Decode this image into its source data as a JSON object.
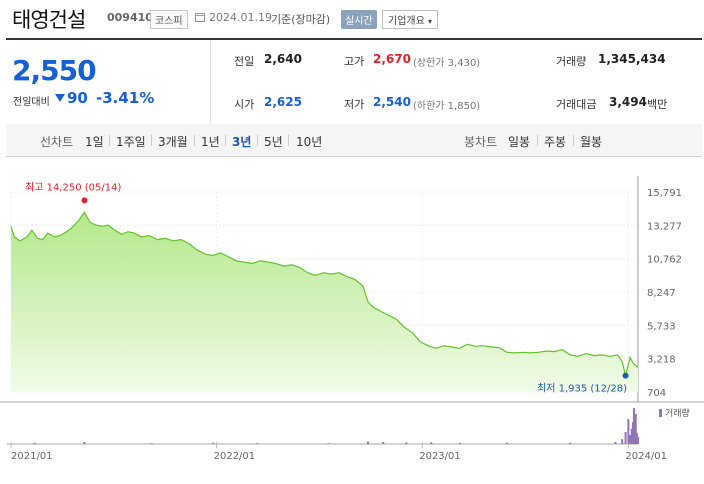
{
  "header": {
    "stock_name": "태영건설",
    "stock_code": "009410",
    "market": "코스피",
    "date": "2024.01.19",
    "basis": "기준(장마감)",
    "realtime_badge": "실시간",
    "company_info_button": "기업개요"
  },
  "quote": {
    "price": "2,550",
    "change_label": "전일대비",
    "change_value": "90",
    "change_rate": "-3.41%",
    "direction": "down",
    "colors": {
      "up": "#e0212b",
      "down": "#1560d6"
    },
    "stats": [
      {
        "label": "전일",
        "value": "2,640",
        "tone": "neutral"
      },
      {
        "label": "고가",
        "value": "2,670",
        "sub": "(상한가 3,430)",
        "tone": "up"
      },
      {
        "label": "거래량",
        "value": "1,345,434",
        "tone": "neutral"
      },
      {
        "label": "시가",
        "value": "2,625",
        "tone": "down"
      },
      {
        "label": "저가",
        "value": "2,540",
        "sub": "(하한가 1,850)",
        "tone": "down"
      },
      {
        "label": "거래대금",
        "value": "3,494",
        "unit": "백만",
        "tone": "neutral"
      }
    ]
  },
  "line_chart_tabs": {
    "label": "선차트",
    "items": [
      "1일",
      "1주일",
      "3개월",
      "1년",
      "3년",
      "5년",
      "10년"
    ],
    "active": "3년"
  },
  "candle_chart_tabs": {
    "label": "봉차트",
    "items": [
      "일봉",
      "주봉",
      "월봉"
    ]
  },
  "chart_data": {
    "type": "area",
    "y_ticks": [
      "15,791",
      "13,277",
      "10,762",
      "8,247",
      "5,733",
      "3,218",
      "704"
    ],
    "ylim": [
      704,
      15791
    ],
    "x_ticks": [
      "2021/01",
      "2022/01",
      "2023/01",
      "2024/01"
    ],
    "x_start": "2021-01-04",
    "x_end": "2024-01-19",
    "series": [
      {
        "values": [
          [
            "2021-01-04",
            13200
          ],
          [
            "2021-01-10",
            12400
          ],
          [
            "2021-01-20",
            12100
          ],
          [
            "2021-02-01",
            12400
          ],
          [
            "2021-02-10",
            12900
          ],
          [
            "2021-02-20",
            12300
          ],
          [
            "2021-03-01",
            12200
          ],
          [
            "2021-03-10",
            12700
          ],
          [
            "2021-03-22",
            12400
          ],
          [
            "2021-04-01",
            12500
          ],
          [
            "2021-04-12",
            12800
          ],
          [
            "2021-04-22",
            13100
          ],
          [
            "2021-05-03",
            13600
          ],
          [
            "2021-05-14",
            14250
          ],
          [
            "2021-05-24",
            13500
          ],
          [
            "2021-06-03",
            13300
          ],
          [
            "2021-06-15",
            13200
          ],
          [
            "2021-06-25",
            13300
          ],
          [
            "2021-07-07",
            12900
          ],
          [
            "2021-07-19",
            12600
          ],
          [
            "2021-07-30",
            12800
          ],
          [
            "2021-08-10",
            12700
          ],
          [
            "2021-08-23",
            12400
          ],
          [
            "2021-09-06",
            12500
          ],
          [
            "2021-09-20",
            12200
          ],
          [
            "2021-10-04",
            12300
          ],
          [
            "2021-10-18",
            12100
          ],
          [
            "2021-11-01",
            12200
          ],
          [
            "2021-11-15",
            11900
          ],
          [
            "2021-11-30",
            11400
          ],
          [
            "2021-12-14",
            11100
          ],
          [
            "2021-12-28",
            11000
          ],
          [
            "2022-01-10",
            11200
          ],
          [
            "2022-01-24",
            10900
          ],
          [
            "2022-02-07",
            10600
          ],
          [
            "2022-02-21",
            10500
          ],
          [
            "2022-03-07",
            10400
          ],
          [
            "2022-03-21",
            10600
          ],
          [
            "2022-04-04",
            10500
          ],
          [
            "2022-04-18",
            10400
          ],
          [
            "2022-05-02",
            10200
          ],
          [
            "2022-05-16",
            10300
          ],
          [
            "2022-05-30",
            10100
          ],
          [
            "2022-06-13",
            9700
          ],
          [
            "2022-06-27",
            9500
          ],
          [
            "2022-07-11",
            9700
          ],
          [
            "2022-07-25",
            9600
          ],
          [
            "2022-08-08",
            9700
          ],
          [
            "2022-08-22",
            9400
          ],
          [
            "2022-09-05",
            9200
          ],
          [
            "2022-09-19",
            8700
          ],
          [
            "2022-09-28",
            7500
          ],
          [
            "2022-10-07",
            7100
          ],
          [
            "2022-10-20",
            6800
          ],
          [
            "2022-11-03",
            6500
          ],
          [
            "2022-11-17",
            6200
          ],
          [
            "2022-12-01",
            5600
          ],
          [
            "2022-12-15",
            5200
          ],
          [
            "2022-12-29",
            4500
          ],
          [
            "2023-01-12",
            4200
          ],
          [
            "2023-01-26",
            4000
          ],
          [
            "2023-02-09",
            4200
          ],
          [
            "2023-02-23",
            4100
          ],
          [
            "2023-03-09",
            4000
          ],
          [
            "2023-03-23",
            4300
          ],
          [
            "2023-04-06",
            4150
          ],
          [
            "2023-04-20",
            4200
          ],
          [
            "2023-05-04",
            4100
          ],
          [
            "2023-05-18",
            4050
          ],
          [
            "2023-06-01",
            3700
          ],
          [
            "2023-06-15",
            3650
          ],
          [
            "2023-06-29",
            3700
          ],
          [
            "2023-07-13",
            3650
          ],
          [
            "2023-07-27",
            3700
          ],
          [
            "2023-08-10",
            3800
          ],
          [
            "2023-08-24",
            3750
          ],
          [
            "2023-09-07",
            3900
          ],
          [
            "2023-09-21",
            3500
          ],
          [
            "2023-10-05",
            3400
          ],
          [
            "2023-10-19",
            3600
          ],
          [
            "2023-11-02",
            3450
          ],
          [
            "2023-11-16",
            3500
          ],
          [
            "2023-11-30",
            3400
          ],
          [
            "2023-12-14",
            3500
          ],
          [
            "2023-12-22",
            3000
          ],
          [
            "2023-12-28",
            1935
          ],
          [
            "2024-01-05",
            3300
          ],
          [
            "2024-01-10",
            2900
          ],
          [
            "2024-01-19",
            2550
          ]
        ]
      }
    ],
    "volume": {
      "label": "거래량",
      "bars": [
        [
          "2021-02-15",
          0.03
        ],
        [
          "2021-05-14",
          0.05
        ],
        [
          "2021-09-10",
          0.02
        ],
        [
          "2021-12-28",
          0.03
        ],
        [
          "2022-03-15",
          0.02
        ],
        [
          "2022-07-20",
          0.02
        ],
        [
          "2022-09-28",
          0.06
        ],
        [
          "2022-10-25",
          0.05
        ],
        [
          "2022-12-05",
          0.04
        ],
        [
          "2023-01-18",
          0.04
        ],
        [
          "2023-03-10",
          0.03
        ],
        [
          "2023-06-01",
          0.03
        ],
        [
          "2023-09-21",
          0.03
        ],
        [
          "2023-12-10",
          0.05
        ],
        [
          "2023-12-22",
          0.12
        ],
        [
          "2023-12-28",
          0.3
        ],
        [
          "2024-01-02",
          0.62
        ],
        [
          "2024-01-05",
          0.22
        ],
        [
          "2024-01-08",
          0.38
        ],
        [
          "2024-01-10",
          0.55
        ],
        [
          "2024-01-12",
          0.9
        ],
        [
          "2024-01-15",
          0.75
        ],
        [
          "2024-01-17",
          0.28
        ],
        [
          "2024-01-19",
          0.18
        ]
      ]
    },
    "annotations": {
      "high": {
        "text": "최고 14,250 (05/14)",
        "date": "2021-05-14",
        "value": 14250
      },
      "low": {
        "text": "최저 1,935 (12/28)",
        "date": "2023-12-28",
        "value": 1935
      }
    },
    "colors": {
      "line": "#63c22a",
      "fill_top": "#b4e88a",
      "fill_bottom": "#f1fbe8",
      "volume": "#8f74b6",
      "high": "#e0212b",
      "low": "#1a5ea6"
    }
  }
}
